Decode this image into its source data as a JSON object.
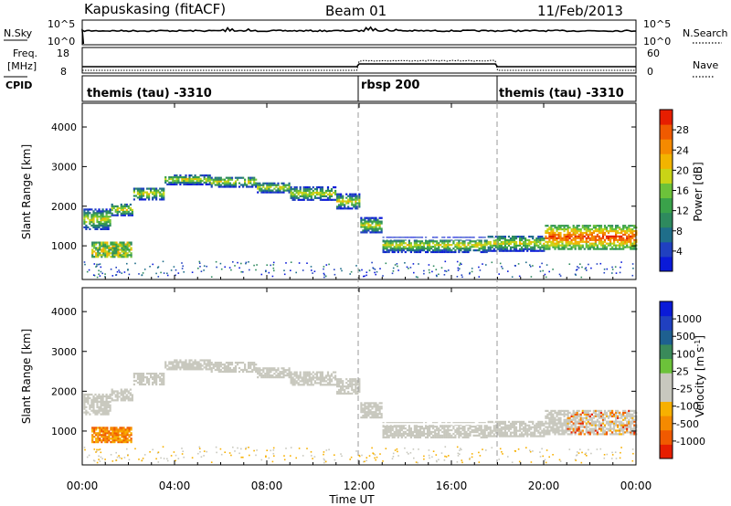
{
  "header": {
    "station": "Kapuskasing (fitACF)",
    "beam": "Beam 01",
    "date": "11/Feb/2013"
  },
  "strips": {
    "nsky": {
      "left_label": "N.Sky",
      "left_ticks": [
        "10^5",
        "10^0"
      ],
      "right_ticks": [
        "10^5",
        "10^0"
      ],
      "right_label": "N.Search"
    },
    "freq": {
      "left_label_1": "Freq.",
      "left_label_2": "[MHz]",
      "left_ticks": [
        "18",
        "8"
      ],
      "right_ticks": [
        "60",
        "0"
      ],
      "right_label": "Nave"
    },
    "cpid": {
      "label": "CPID",
      "segments": [
        "themis (tau) -3310",
        "rbsp 200",
        "themis (tau) -3310"
      ]
    }
  },
  "colors": {
    "power_colorbar": [
      "#0a1ad8",
      "#2040c0",
      "#1f6e8a",
      "#2e8a5e",
      "#3aa24a",
      "#6cc23a",
      "#c9d416",
      "#f2b400",
      "#f58a00",
      "#f05a00",
      "#e61e00"
    ],
    "velocity_colorbar": [
      "#e61e00",
      "#f05a00",
      "#f58a00",
      "#f7b000",
      "#c8c8be",
      "#c8c8be",
      "#6cc23a",
      "#3a8a5a",
      "#1e6090",
      "#2040c0",
      "#0a1ad8"
    ],
    "ground_scatter": "#c8c8be"
  },
  "chart_data": [
    {
      "type": "heatmap",
      "name_panel": "power",
      "ylabel": "Slant Range [km]",
      "yticks": [
        "4000",
        "3000",
        "2000",
        "1000"
      ],
      "ylim": [
        150,
        4600
      ],
      "xlim": [
        0,
        24
      ],
      "colorbar_label": "Power [dB]",
      "colorbar_ticks": [
        "28",
        "24",
        "20",
        "16",
        "12",
        "8",
        "4"
      ],
      "colorbar_range": [
        0,
        30
      ]
    },
    {
      "type": "heatmap",
      "name_panel": "velocity",
      "ylabel": "Slant Range [km]",
      "yticks": [
        "4000",
        "3000",
        "2000",
        "1000"
      ],
      "ylim": [
        150,
        4600
      ],
      "xlim": [
        0,
        24
      ],
      "colorbar_label": "Velocity [m s",
      "colorbar_label_sup": "-1",
      "colorbar_label_end": "]",
      "colorbar_ticks": [
        "1000",
        "500",
        "100",
        "25",
        "-25",
        "-100",
        "-500",
        "-1000"
      ]
    }
  ],
  "xaxis": {
    "label": "Time UT",
    "ticks": [
      "00:00",
      "04:00",
      "08:00",
      "12:00",
      "16:00",
      "20:00",
      "00:00"
    ],
    "tick_hours": [
      0,
      4,
      8,
      12,
      16,
      20,
      24
    ]
  }
}
